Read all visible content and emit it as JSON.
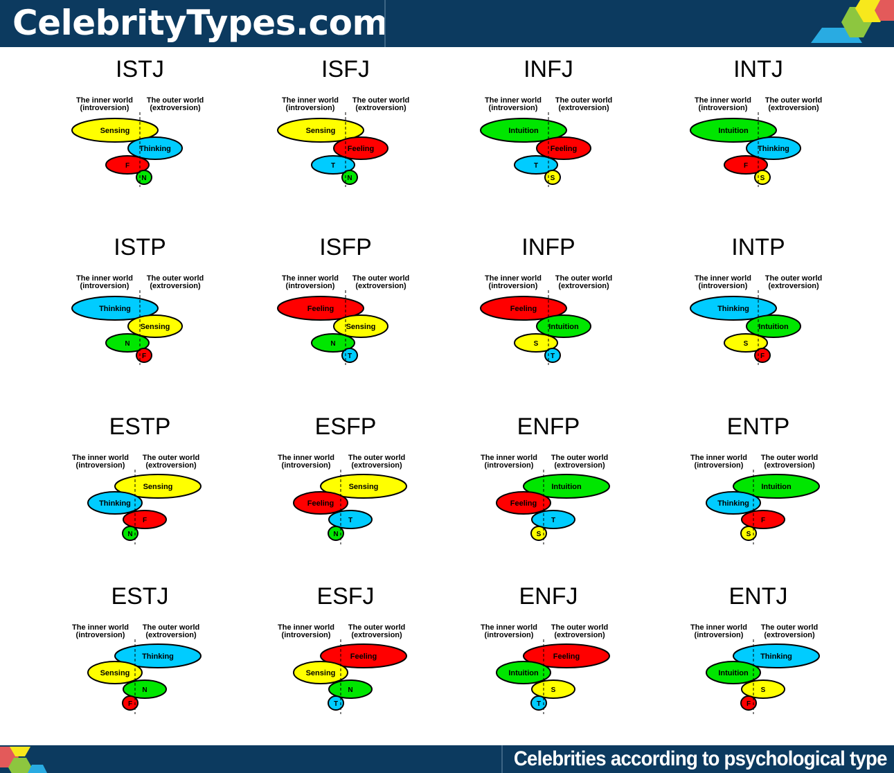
{
  "site_title": "CelebrityTypes.com",
  "footer_tagline": "Celebrities according to psychological type",
  "labels": {
    "inner_1": "The inner world",
    "inner_2": "(introversion)",
    "outer_1": "The outer world",
    "outer_2": "(extroversion)"
  },
  "function_colors": {
    "Sensing": "#ffff00",
    "Intuition": "#00e600",
    "Thinking": "#00ccff",
    "Feeling": "#ff0000"
  },
  "abbreviations": {
    "Sensing": "S",
    "Intuition": "N",
    "Thinking": "T",
    "Feeling": "F"
  },
  "types": [
    {
      "name": "ISTJ",
      "functions": [
        "Sensing",
        "Thinking",
        "Feeling",
        "Intuition"
      ]
    },
    {
      "name": "ISFJ",
      "functions": [
        "Sensing",
        "Feeling",
        "Thinking",
        "Intuition"
      ]
    },
    {
      "name": "INFJ",
      "functions": [
        "Intuition",
        "Feeling",
        "Thinking",
        "Sensing"
      ]
    },
    {
      "name": "INTJ",
      "functions": [
        "Intuition",
        "Thinking",
        "Feeling",
        "Sensing"
      ]
    },
    {
      "name": "ISTP",
      "functions": [
        "Thinking",
        "Sensing",
        "Intuition",
        "Feeling"
      ]
    },
    {
      "name": "ISFP",
      "functions": [
        "Feeling",
        "Sensing",
        "Intuition",
        "Thinking"
      ]
    },
    {
      "name": "INFP",
      "functions": [
        "Feeling",
        "Intuition",
        "Sensing",
        "Thinking"
      ]
    },
    {
      "name": "INTP",
      "functions": [
        "Thinking",
        "Intuition",
        "Sensing",
        "Feeling"
      ]
    },
    {
      "name": "ESTP",
      "functions": [
        "Sensing",
        "Thinking",
        "Feeling",
        "Intuition"
      ]
    },
    {
      "name": "ESFP",
      "functions": [
        "Sensing",
        "Feeling",
        "Thinking",
        "Intuition"
      ]
    },
    {
      "name": "ENFP",
      "functions": [
        "Intuition",
        "Feeling",
        "Thinking",
        "Sensing"
      ]
    },
    {
      "name": "ENTP",
      "functions": [
        "Intuition",
        "Thinking",
        "Feeling",
        "Sensing"
      ]
    },
    {
      "name": "ESTJ",
      "functions": [
        "Thinking",
        "Sensing",
        "Intuition",
        "Feeling"
      ]
    },
    {
      "name": "ESFJ",
      "functions": [
        "Feeling",
        "Sensing",
        "Intuition",
        "Thinking"
      ]
    },
    {
      "name": "ENFJ",
      "functions": [
        "Feeling",
        "Intuition",
        "Sensing",
        "Thinking"
      ]
    },
    {
      "name": "ENTJ",
      "functions": [
        "Thinking",
        "Intuition",
        "Sensing",
        "Feeling"
      ]
    }
  ]
}
